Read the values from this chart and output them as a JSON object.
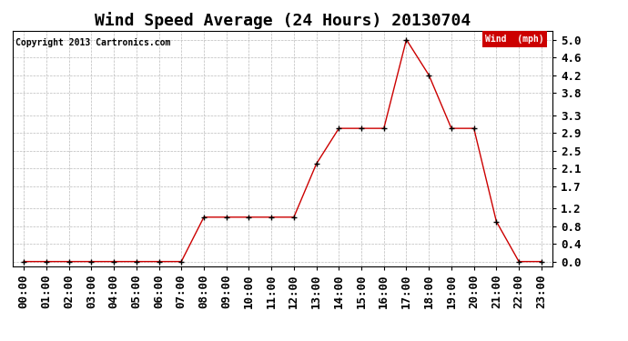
{
  "title": "Wind Speed Average (24 Hours) 20130704",
  "copyright": "Copyright 2013 Cartronics.com",
  "legend_label": "Wind  (mph)",
  "legend_bg": "#cc0000",
  "legend_text_color": "#ffffff",
  "x_labels": [
    "00:00",
    "01:00",
    "02:00",
    "03:00",
    "04:00",
    "05:00",
    "06:00",
    "07:00",
    "08:00",
    "09:00",
    "10:00",
    "11:00",
    "12:00",
    "13:00",
    "14:00",
    "15:00",
    "16:00",
    "17:00",
    "18:00",
    "19:00",
    "20:00",
    "21:00",
    "22:00",
    "23:00"
  ],
  "y_ticks": [
    0.0,
    0.4,
    0.8,
    1.2,
    1.7,
    2.1,
    2.5,
    2.9,
    3.3,
    3.8,
    4.2,
    4.6,
    5.0
  ],
  "wind_data": [
    0.0,
    0.0,
    0.0,
    0.0,
    0.0,
    0.0,
    0.0,
    0.0,
    1.0,
    1.0,
    1.0,
    1.0,
    1.0,
    2.2,
    3.0,
    3.0,
    3.0,
    5.0,
    4.2,
    3.0,
    3.0,
    0.9,
    0.0,
    0.0
  ],
  "line_color": "#cc0000",
  "marker_color": "#000000",
  "bg_color": "#ffffff",
  "grid_color": "#bbbbbb",
  "title_fontsize": 13,
  "tick_fontsize": 9,
  "ylim_min": -0.1,
  "ylim_max": 5.2
}
